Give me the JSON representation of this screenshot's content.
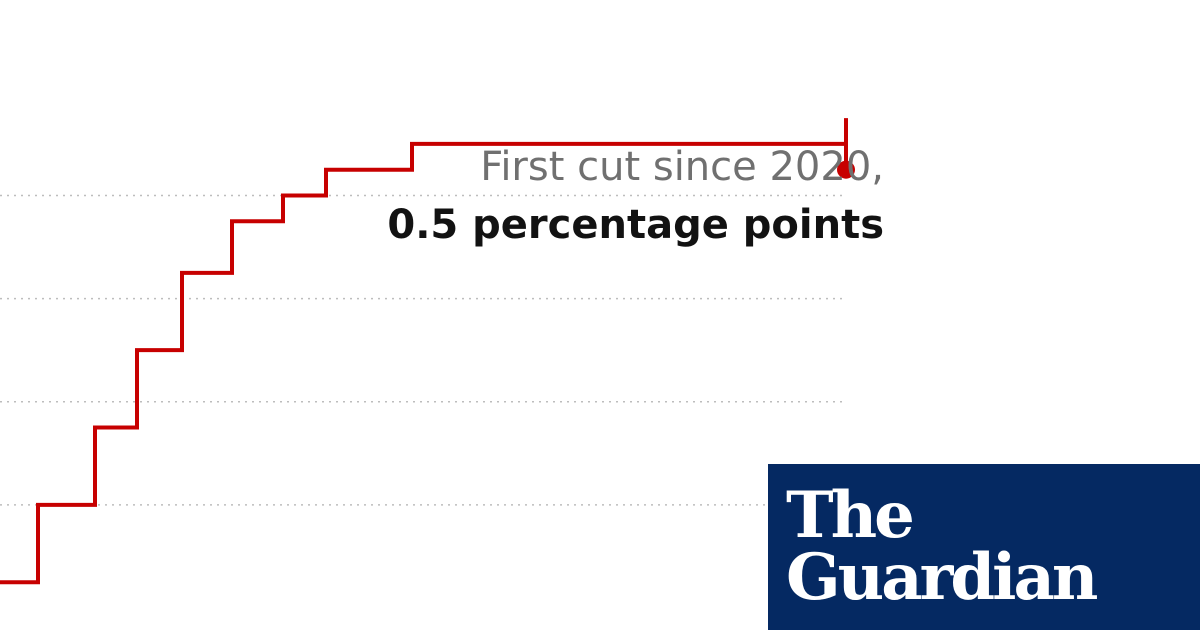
{
  "colors": {
    "line": "#c70000",
    "grid": "#bdbdbd",
    "annotation_muted": "#707070",
    "annotation_strong": "#121212",
    "logo_background": "#052962",
    "logo_text": "#ffffff"
  },
  "annotation": {
    "line1": "First cut since 2020,",
    "line2": "0.5 percentage points"
  },
  "logo": {
    "word1": "The",
    "word2": "Guardian"
  },
  "chart_data": {
    "type": "line",
    "step": true,
    "title": "",
    "xlabel": "",
    "ylabel": "",
    "grid": "horizontal-dotted",
    "ylim": [
      0,
      5.75
    ],
    "gridlines": [
      1,
      2,
      3,
      4
    ],
    "series": [
      {
        "values": [
          0.25,
          1.0,
          1.75,
          2.5,
          3.25,
          3.75,
          4.0,
          4.25,
          4.5,
          4.75,
          4.25
        ],
        "end_marker": true
      }
    ]
  }
}
